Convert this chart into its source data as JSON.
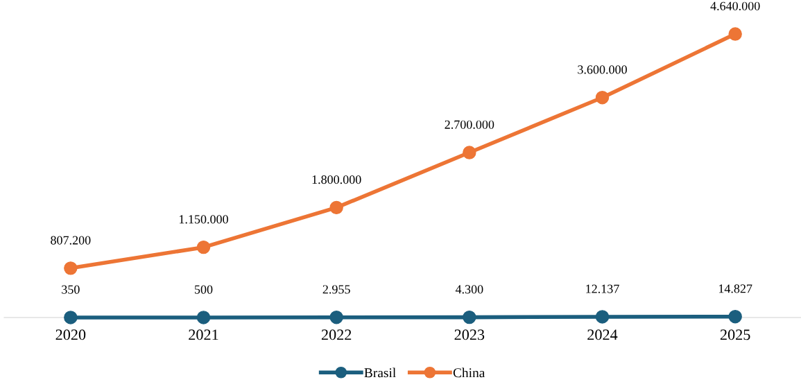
{
  "chart_data": {
    "type": "line",
    "categories": [
      "2020",
      "2021",
      "2022",
      "2023",
      "2024",
      "2025"
    ],
    "series": [
      {
        "name": "Brasil",
        "color": "#1b5e7e",
        "values": [
          350,
          500,
          2955,
          4300,
          12137,
          14827
        ],
        "value_labels": [
          "350",
          "500",
          "2.955",
          "4.300",
          "12.137",
          "14.827"
        ]
      },
      {
        "name": "China",
        "color": "#ed7535",
        "values": [
          807200,
          1150000,
          1800000,
          2700000,
          3600000,
          4640000
        ],
        "value_labels": [
          "807.200",
          "1.150.000",
          "1.800.000",
          "2.700.000",
          "3.600.000",
          "4.640.000"
        ]
      }
    ],
    "tick_labels": "x",
    "marker": "circle",
    "line_style": "solid",
    "legend": "bottom",
    "grid": false
  }
}
